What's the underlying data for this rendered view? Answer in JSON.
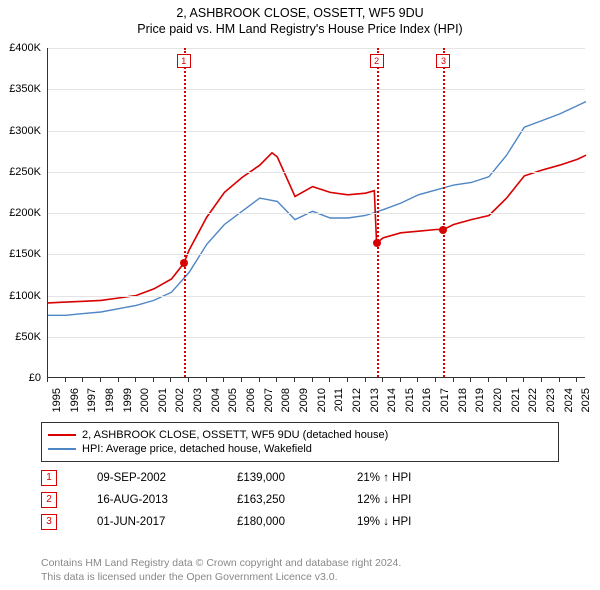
{
  "title": {
    "line1": "2, ASHBROOK CLOSE, OSSETT, WF5 9DU",
    "line2": "Price paid vs. HM Land Registry's House Price Index (HPI)"
  },
  "chart": {
    "type": "line",
    "background_color": "#ffffff",
    "grid_color": "#e4e4e4",
    "axis_color": "#333333",
    "x_start_year": 1995,
    "x_end_year": 2025.5,
    "x_ticks": [
      1995,
      1996,
      1997,
      1998,
      1999,
      2000,
      2001,
      2002,
      2003,
      2004,
      2005,
      2006,
      2007,
      2008,
      2009,
      2010,
      2011,
      2012,
      2013,
      2014,
      2015,
      2016,
      2017,
      2018,
      2019,
      2020,
      2021,
      2022,
      2023,
      2024,
      2025
    ],
    "y_min": 0,
    "y_max": 400000,
    "y_tick_step": 50000,
    "y_tick_labels": [
      "£0",
      "£50K",
      "£100K",
      "£150K",
      "£200K",
      "£250K",
      "£300K",
      "£350K",
      "£400K"
    ],
    "series": [
      {
        "name": "price_paid",
        "label": "2, ASHBROOK CLOSE, OSSETT, WF5 9DU (detached house)",
        "color": "#d80000",
        "line_width": 1.6,
        "points": [
          [
            1995,
            91000
          ],
          [
            1996,
            92000
          ],
          [
            1997,
            93000
          ],
          [
            1998,
            94000
          ],
          [
            1999,
            97000
          ],
          [
            2000,
            100000
          ],
          [
            2001,
            108000
          ],
          [
            2002,
            120000
          ],
          [
            2002.7,
            139000
          ],
          [
            2003,
            155000
          ],
          [
            2004,
            195000
          ],
          [
            2005,
            225000
          ],
          [
            2006,
            243000
          ],
          [
            2007,
            258000
          ],
          [
            2007.7,
            273000
          ],
          [
            2008,
            268000
          ],
          [
            2009,
            220000
          ],
          [
            2010,
            232000
          ],
          [
            2011,
            225000
          ],
          [
            2012,
            222000
          ],
          [
            2013,
            224000
          ],
          [
            2013.5,
            227000
          ],
          [
            2013.63,
            163250
          ],
          [
            2014,
            170000
          ],
          [
            2015,
            176000
          ],
          [
            2016,
            178000
          ],
          [
            2017,
            180000
          ],
          [
            2017.42,
            180000
          ],
          [
            2018,
            186000
          ],
          [
            2019,
            192000
          ],
          [
            2020,
            197000
          ],
          [
            2021,
            218000
          ],
          [
            2022,
            245000
          ],
          [
            2023,
            252000
          ],
          [
            2024,
            258000
          ],
          [
            2025,
            265000
          ],
          [
            2025.5,
            270000
          ]
        ]
      },
      {
        "name": "hpi",
        "label": "HPI: Average price, detached house, Wakefield",
        "color": "#4f86c6",
        "line_width": 1.4,
        "points": [
          [
            1995,
            76000
          ],
          [
            1996,
            76000
          ],
          [
            1997,
            78000
          ],
          [
            1998,
            80000
          ],
          [
            1999,
            84000
          ],
          [
            2000,
            88000
          ],
          [
            2001,
            94000
          ],
          [
            2002,
            104000
          ],
          [
            2003,
            128000
          ],
          [
            2004,
            162000
          ],
          [
            2005,
            186000
          ],
          [
            2006,
            202000
          ],
          [
            2007,
            218000
          ],
          [
            2008,
            214000
          ],
          [
            2009,
            192000
          ],
          [
            2010,
            202000
          ],
          [
            2011,
            194000
          ],
          [
            2012,
            194000
          ],
          [
            2013,
            197000
          ],
          [
            2014,
            204000
          ],
          [
            2015,
            212000
          ],
          [
            2016,
            222000
          ],
          [
            2017,
            228000
          ],
          [
            2018,
            234000
          ],
          [
            2019,
            237000
          ],
          [
            2020,
            244000
          ],
          [
            2021,
            270000
          ],
          [
            2022,
            304000
          ],
          [
            2023,
            312000
          ],
          [
            2024,
            320000
          ],
          [
            2025,
            330000
          ],
          [
            2025.5,
            335000
          ]
        ]
      }
    ],
    "markers": [
      {
        "n": "1",
        "year": 2002.7,
        "price": 139000,
        "color": "#d80000"
      },
      {
        "n": "2",
        "year": 2013.63,
        "price": 163250,
        "color": "#d80000"
      },
      {
        "n": "3",
        "year": 2017.42,
        "price": 180000,
        "color": "#d80000"
      }
    ]
  },
  "legend": {
    "items": [
      {
        "color": "#d80000",
        "label": "2, ASHBROOK CLOSE, OSSETT, WF5 9DU (detached house)"
      },
      {
        "color": "#4f86c6",
        "label": "HPI: Average price, detached house, Wakefield"
      }
    ]
  },
  "marker_table": [
    {
      "n": "1",
      "color": "#d80000",
      "date": "09-SEP-2002",
      "price": "£139,000",
      "diff": "21% ↑ HPI"
    },
    {
      "n": "2",
      "color": "#d80000",
      "date": "16-AUG-2013",
      "price": "£163,250",
      "diff": "12% ↓ HPI"
    },
    {
      "n": "3",
      "color": "#d80000",
      "date": "01-JUN-2017",
      "price": "£180,000",
      "diff": "19% ↓ HPI"
    }
  ],
  "footer": {
    "line1": "Contains HM Land Registry data © Crown copyright and database right 2024.",
    "line2": "This data is licensed under the Open Government Licence v3.0."
  }
}
